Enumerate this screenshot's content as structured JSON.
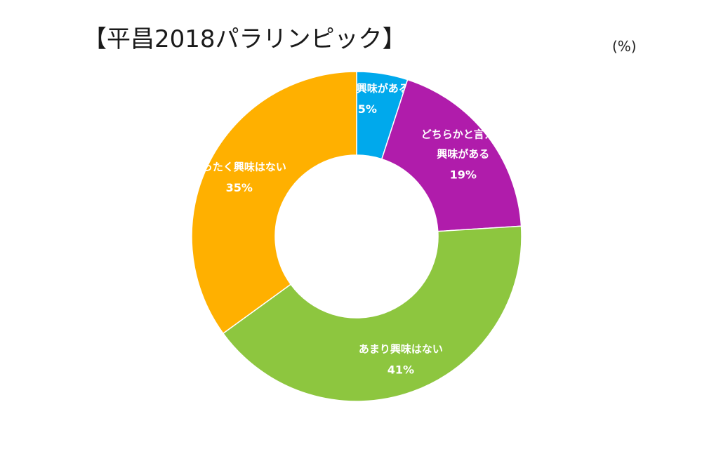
{
  "chart_data": {
    "type": "pie",
    "title": "【平昌2018パラリンピック】",
    "unit_label": "(%)",
    "slices": [
      {
        "label_lines": [
          "とても興味がある"
        ],
        "value": 5,
        "value_label": "5%",
        "color": "#00a9ec"
      },
      {
        "label_lines": [
          "どちらかと言えば",
          "興味がある"
        ],
        "value": 19,
        "value_label": "19%",
        "color": "#b01cab"
      },
      {
        "label_lines": [
          "あまり興味はない"
        ],
        "value": 41,
        "value_label": "41%",
        "color": "#8dc63f"
      },
      {
        "label_lines": [
          "まったく興味はない"
        ],
        "value": 35,
        "value_label": "35%",
        "color": "#ffb000"
      }
    ],
    "donut": true
  }
}
